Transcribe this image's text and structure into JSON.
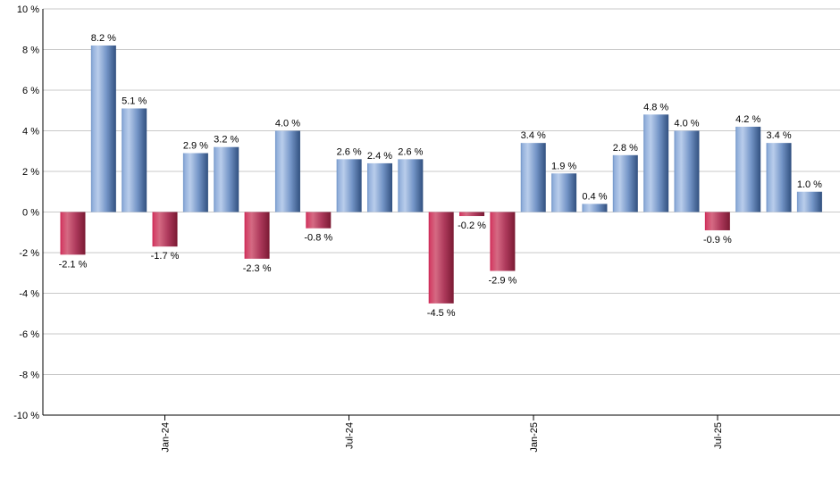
{
  "chart_data": {
    "type": "bar",
    "title": "",
    "unit": "%",
    "value_suffix": " %",
    "bars": [
      {
        "value": -2.1,
        "label": "-2.1 %"
      },
      {
        "value": 8.2,
        "label": "8.2 %"
      },
      {
        "value": 5.1,
        "label": "5.1 %"
      },
      {
        "value": -1.7,
        "label": "-1.7 %"
      },
      {
        "value": 2.9,
        "label": "2.9 %"
      },
      {
        "value": 3.2,
        "label": "3.2 %"
      },
      {
        "value": -2.3,
        "label": "-2.3 %"
      },
      {
        "value": 4.0,
        "label": "4.0 %"
      },
      {
        "value": -0.8,
        "label": "-0.8 %"
      },
      {
        "value": 2.6,
        "label": "2.6 %"
      },
      {
        "value": 2.4,
        "label": "2.4 %"
      },
      {
        "value": 2.6,
        "label": "2.6 %"
      },
      {
        "value": -4.5,
        "label": "-4.5 %"
      },
      {
        "value": -0.2,
        "label": "-0.2 %"
      },
      {
        "value": -2.9,
        "label": "-2.9 %"
      },
      {
        "value": 3.4,
        "label": "3.4 %"
      },
      {
        "value": 1.9,
        "label": "1.9 %"
      },
      {
        "value": 0.4,
        "label": "0.4 %"
      },
      {
        "value": 2.8,
        "label": "2.8 %"
      },
      {
        "value": 4.8,
        "label": "4.8 %"
      },
      {
        "value": 4.0,
        "label": "4.0 %"
      },
      {
        "value": -0.9,
        "label": "-0.9 %"
      },
      {
        "value": 4.2,
        "label": "4.2 %"
      },
      {
        "value": 3.4,
        "label": "3.4 %"
      },
      {
        "value": 1.0,
        "label": "1.0 %"
      }
    ],
    "x_ticks": [
      {
        "label": "Jan-24",
        "bar_index": 3
      },
      {
        "label": "Jul-24",
        "bar_index": 9
      },
      {
        "label": "Jan-25",
        "bar_index": 15
      },
      {
        "label": "Jul-25",
        "bar_index": 21
      }
    ],
    "y_ticks": [
      {
        "value": 10,
        "label": "10 %"
      },
      {
        "value": 8,
        "label": "8 %"
      },
      {
        "value": 6,
        "label": "6 %"
      },
      {
        "value": 4,
        "label": "4 %"
      },
      {
        "value": 2,
        "label": "2 %"
      },
      {
        "value": 0,
        "label": "0 %"
      },
      {
        "value": -2,
        "label": "-2 %"
      },
      {
        "value": -4,
        "label": "-4 %"
      },
      {
        "value": -6,
        "label": "-6 %"
      },
      {
        "value": -8,
        "label": "-8 %"
      },
      {
        "value": -10,
        "label": "-10 %"
      }
    ],
    "ylim": [
      -10,
      10
    ],
    "grid": true,
    "legend": "none",
    "colors": {
      "axis": "#000000",
      "gridline": "#c9c9c9",
      "label_text": "#000000",
      "positive_gradient": [
        {
          "offset": 0,
          "color": "#6e92c6"
        },
        {
          "offset": 0.07,
          "color": "#93b0db"
        },
        {
          "offset": 0.28,
          "color": "#b9cdeb"
        },
        {
          "offset": 0.62,
          "color": "#7495c7"
        },
        {
          "offset": 1,
          "color": "#31507f"
        }
      ],
      "negative_gradient": [
        {
          "offset": 0,
          "color": "#cc2252"
        },
        {
          "offset": 0.07,
          "color": "#d34368"
        },
        {
          "offset": 0.28,
          "color": "#d56a83"
        },
        {
          "offset": 0.62,
          "color": "#ae3a5c"
        },
        {
          "offset": 1,
          "color": "#7a1a33"
        }
      ]
    }
  }
}
